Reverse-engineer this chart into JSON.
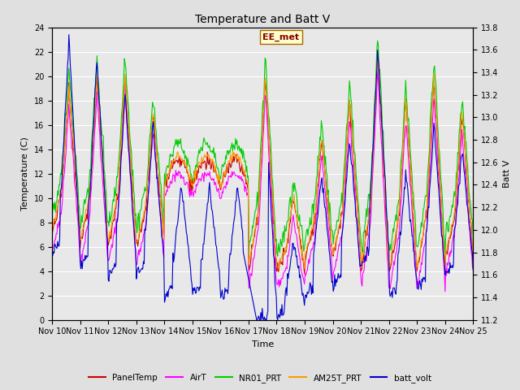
{
  "title": "Temperature and Batt V",
  "xlabel": "Time",
  "ylabel_left": "Temperature (C)",
  "ylabel_right": "Batt V",
  "ylim_left": [
    0,
    24
  ],
  "ylim_right": [
    11.2,
    13.8
  ],
  "yticks_left": [
    0,
    2,
    4,
    6,
    8,
    10,
    12,
    14,
    16,
    18,
    20,
    22,
    24
  ],
  "yticks_right": [
    11.2,
    11.4,
    11.6,
    11.8,
    12.0,
    12.2,
    12.4,
    12.6,
    12.8,
    13.0,
    13.2,
    13.4,
    13.6,
    13.8
  ],
  "xtick_labels": [
    "Nov 10",
    "Nov 11",
    "Nov 12",
    "Nov 13",
    "Nov 14",
    "Nov 15",
    "Nov 16",
    "Nov 17",
    "Nov 18",
    "Nov 19",
    "Nov 20",
    "Nov 21",
    "Nov 22",
    "Nov 23",
    "Nov 24",
    "Nov 25"
  ],
  "annotation_text": "EE_met",
  "colors": {
    "PanelTemp": "#cc0000",
    "AirT": "#ff00ff",
    "NR01_PRT": "#00cc00",
    "AM25T_PRT": "#ff9900",
    "batt_volt": "#0000cc"
  },
  "bg_color": "#e0e0e0",
  "plot_bg_color": "#e8e8e8",
  "grid_color": "#ffffff",
  "line_width": 0.8,
  "title_fontsize": 10,
  "axis_fontsize": 8,
  "tick_fontsize": 7
}
